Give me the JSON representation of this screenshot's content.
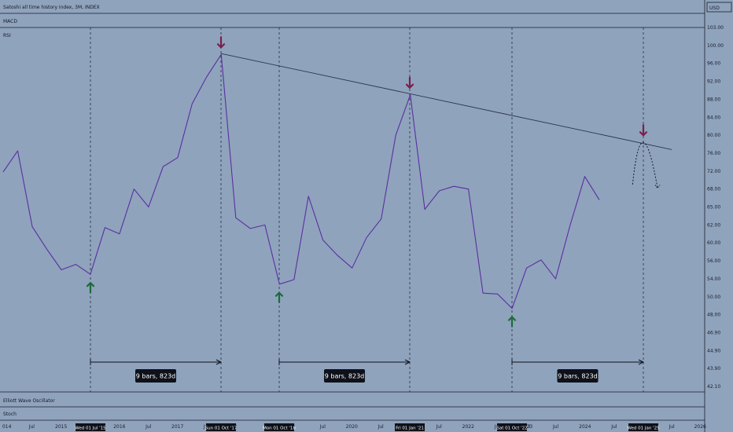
{
  "header": {
    "title": "Satoshi all time history index, 3M, INDEX",
    "currency": "USD"
  },
  "panes": {
    "macd": "MACD",
    "rsi": "RSI",
    "elliott": "Elliott Wave Oscillator",
    "stoch": "Stoch"
  },
  "colors": {
    "background": "#8fa3bd",
    "rsi_line": "#5b2fa0",
    "trendline": "#2e3650",
    "up_arrow": "#1d6b3a",
    "down_arrow": "#7a1f4c",
    "label_bg": "#0e1119"
  },
  "chart_data": {
    "type": "line",
    "series": [
      {
        "name": "RSI",
        "y": [
          71.8,
          76.5,
          61.8,
          58.6,
          55.0,
          55.6,
          54.5,
          61.7,
          61.0,
          68.0,
          65.0,
          73.0,
          75.0,
          87.0,
          93.0,
          98.0,
          63.2,
          61.6,
          62.0,
          52.8,
          53.8,
          66.8,
          60.3,
          57.2,
          55.2,
          60.6,
          63.0,
          80.0,
          89.0,
          64.6,
          67.7,
          68.6,
          68.0,
          50.8,
          50.6,
          48.7,
          55.2,
          56.2,
          54.0,
          62.0,
          70.8,
          66.2
        ]
      }
    ],
    "projection_curve": [
      {
        "x": "2024-10-25",
        "y": 69.0
      },
      {
        "x": "2025-01-01",
        "y": 78.4
      },
      {
        "x": "2025-04-01",
        "y": 68.2
      }
    ],
    "trendline": [
      {
        "x": "2017-10-01",
        "y": 98.2
      },
      {
        "x": "2025-07-01",
        "y": 76.8
      }
    ],
    "y_ticks": [
      "103.00",
      "100.00",
      "96.00",
      "92.00",
      "88.00",
      "84.00",
      "80.00",
      "76.00",
      "72.00",
      "68.00",
      "65.00",
      "62.00",
      "60.00",
      "56.00",
      "54.00",
      "50.00",
      "48.00",
      "46.90",
      "44.90",
      "43.90",
      "42.10"
    ],
    "x_ticks": [
      {
        "label": "014",
        "x": "2014-01-01"
      },
      {
        "label": "Jul",
        "x": "2014-07-01"
      },
      {
        "label": "2015",
        "x": "2015-01-01"
      },
      {
        "label": "2016",
        "x": "2016-01-01"
      },
      {
        "label": "Jul",
        "x": "2016-07-01"
      },
      {
        "label": "2017",
        "x": "2017-01-01"
      },
      {
        "label": "Jul",
        "x": "2017-07-01"
      },
      {
        "label": "8",
        "x": "2018-01-01"
      },
      {
        "label": "9",
        "x": "2019-01-01"
      },
      {
        "label": "Jul",
        "x": "2019-07-01"
      },
      {
        "label": "2020",
        "x": "2020-01-01"
      },
      {
        "label": "Jul",
        "x": "2020-07-01"
      },
      {
        "label": "Jul",
        "x": "2021-07-01"
      },
      {
        "label": "2022",
        "x": "2022-01-01"
      },
      {
        "label": "Jul",
        "x": "2022-07-01"
      },
      {
        "label": "2023",
        "x": "2023-01-01"
      },
      {
        "label": "3",
        "x": "2023-01-15"
      },
      {
        "label": "Jul",
        "x": "2023-07-01"
      },
      {
        "label": "2024",
        "x": "2024-01-01"
      },
      {
        "label": "Jul",
        "x": "2024-07-01"
      },
      {
        "label": "Jul",
        "x": "2025-07-01"
      },
      {
        "label": "2026",
        "x": "2026-01-01"
      }
    ],
    "date_labels": [
      {
        "label": "Wed 01 Jul '15",
        "x": "2015-07-01"
      },
      {
        "label": "Sun 01 Oct '17",
        "x": "2017-10-01"
      },
      {
        "label": "Mon 01 Oct '18",
        "x": "2018-10-01"
      },
      {
        "label": "Fri 01 Jan '21",
        "x": "2021-01-01"
      },
      {
        "label": "Sat 01 Oct '22",
        "x": "2022-10-01"
      },
      {
        "label": "Wed 01 Jan '25",
        "x": "2025-01-01"
      }
    ],
    "up_arrows": [
      {
        "x": "2015-07-01",
        "y": 54.5
      },
      {
        "x": "2018-10-01",
        "y": 52.8
      },
      {
        "x": "2022-10-01",
        "y": 48.7
      }
    ],
    "down_arrows": [
      {
        "x": "2017-10-01",
        "y": 98.0
      },
      {
        "x": "2021-01-01",
        "y": 89.0
      },
      {
        "x": "2025-01-01",
        "y": 78.4
      }
    ],
    "measurements": [
      {
        "label": "9 bars, 823d",
        "from": "2015-07-01",
        "to": "2017-10-01"
      },
      {
        "label": "9 bars, 823d",
        "from": "2018-10-01",
        "to": "2021-01-01"
      },
      {
        "label": "9 bars, 823d",
        "from": "2022-10-01",
        "to": "2025-01-01"
      }
    ],
    "ylim": [
      42.1,
      103.0
    ],
    "xlim": [
      "2014-01-01",
      "2026-01-01"
    ]
  }
}
